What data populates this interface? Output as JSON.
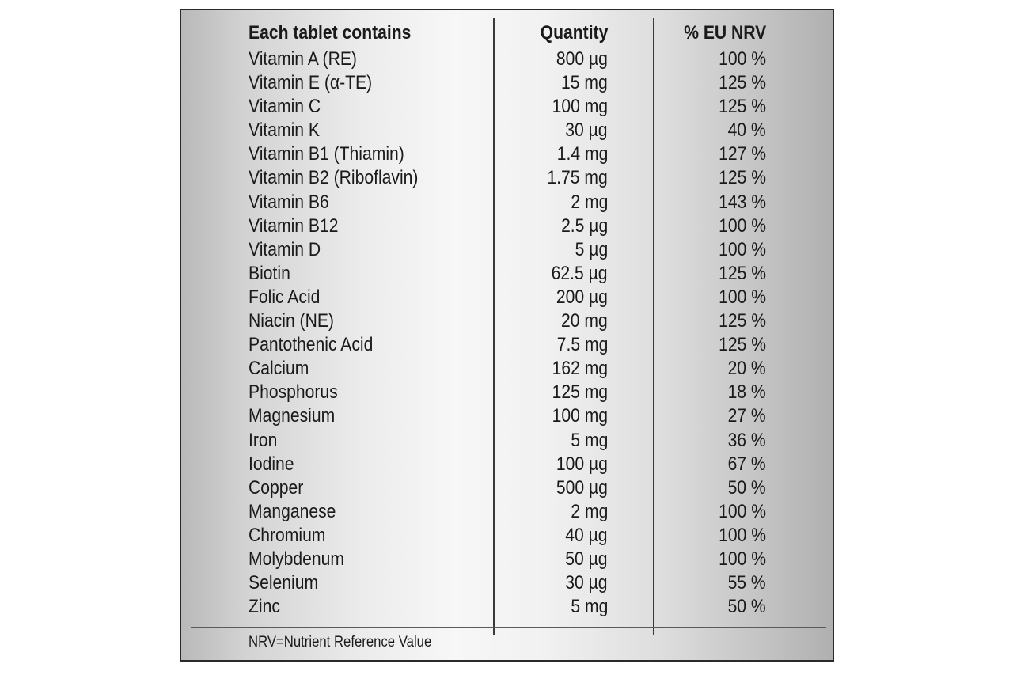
{
  "table": {
    "headers": {
      "name": "Each tablet contains",
      "quantity": "Quantity",
      "nrv": "% EU NRV"
    },
    "rows": [
      {
        "name": "Vitamin A (RE)",
        "quantity": "800 µg",
        "nrv": "100 %"
      },
      {
        "name": "Vitamin E (α-TE)",
        "quantity": "15 mg",
        "nrv": "125 %"
      },
      {
        "name": "Vitamin C",
        "quantity": "100 mg",
        "nrv": "125 %"
      },
      {
        "name": "Vitamin K",
        "quantity": "30 µg",
        "nrv": "40 %"
      },
      {
        "name": "Vitamin B1 (Thiamin)",
        "quantity": "1.4 mg",
        "nrv": "127 %"
      },
      {
        "name": "Vitamin B2 (Riboflavin)",
        "quantity": "1.75 mg",
        "nrv": "125 %"
      },
      {
        "name": "Vitamin B6",
        "quantity": "2 mg",
        "nrv": "143 %"
      },
      {
        "name": "Vitamin B12",
        "quantity": "2.5 µg",
        "nrv": "100 %"
      },
      {
        "name": "Vitamin D",
        "quantity": "5 µg",
        "nrv": "100 %"
      },
      {
        "name": "Biotin",
        "quantity": "62.5 µg",
        "nrv": "125 %"
      },
      {
        "name": "Folic Acid",
        "quantity": "200 µg",
        "nrv": "100 %"
      },
      {
        "name": "Niacin (NE)",
        "quantity": "20 mg",
        "nrv": "125 %"
      },
      {
        "name": "Pantothenic Acid",
        "quantity": "7.5 mg",
        "nrv": "125 %"
      },
      {
        "name": "Calcium",
        "quantity": "162 mg",
        "nrv": "20 %"
      },
      {
        "name": "Phosphorus",
        "quantity": "125 mg",
        "nrv": "18 %"
      },
      {
        "name": "Magnesium",
        "quantity": "100 mg",
        "nrv": "27 %"
      },
      {
        "name": "Iron",
        "quantity": "5 mg",
        "nrv": "36 %"
      },
      {
        "name": "Iodine",
        "quantity": "100 µg",
        "nrv": "67 %"
      },
      {
        "name": "Copper",
        "quantity": "500 µg",
        "nrv": "50 %"
      },
      {
        "name": "Manganese",
        "quantity": "2 mg",
        "nrv": "100 %"
      },
      {
        "name": "Chromium",
        "quantity": "40 µg",
        "nrv": "100 %"
      },
      {
        "name": "Molybdenum",
        "quantity": "50 µg",
        "nrv": "100 %"
      },
      {
        "name": "Selenium",
        "quantity": "30 µg",
        "nrv": "55 %"
      },
      {
        "name": "Zinc",
        "quantity": "5 mg",
        "nrv": "50 %"
      }
    ]
  },
  "footnote": "NRV=Nutrient Reference Value"
}
